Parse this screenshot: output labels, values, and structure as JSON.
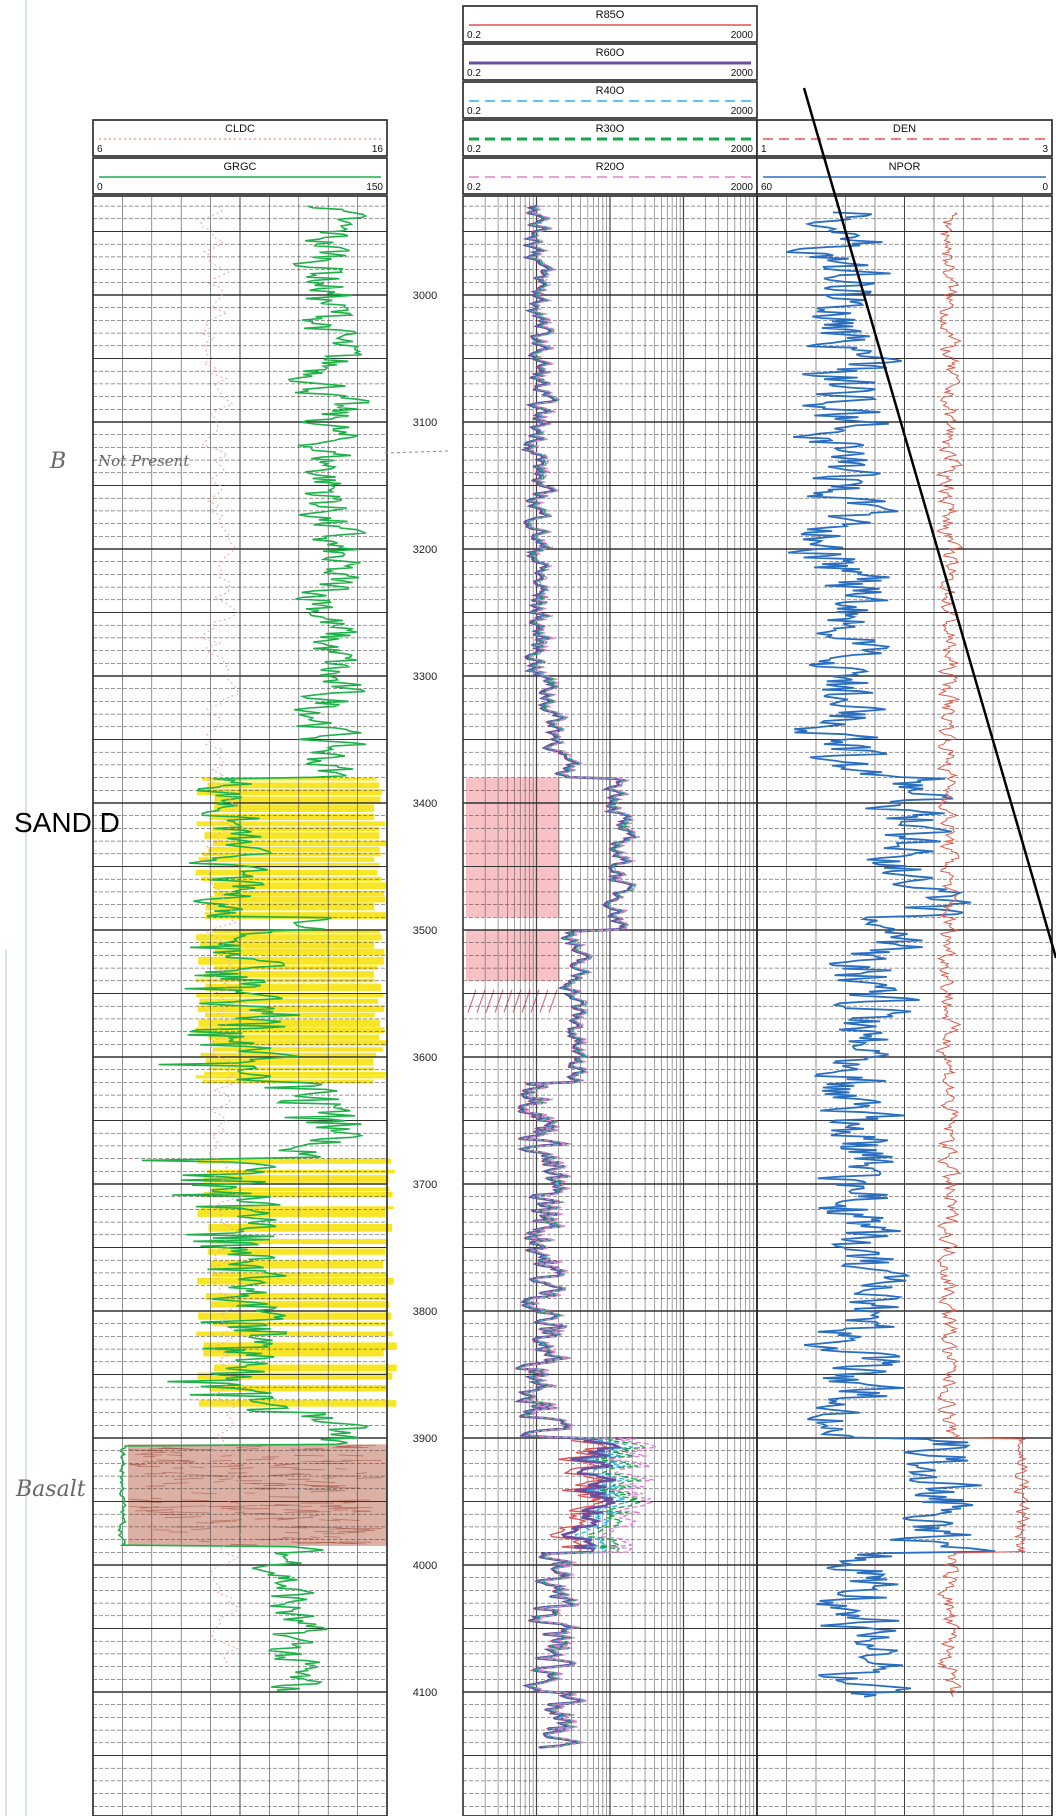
{
  "chart_data": {
    "type": "line",
    "depth_axis": {
      "ticks": [
        3000,
        3100,
        3200,
        3300,
        3400,
        3500,
        3600,
        3700,
        3800,
        3900,
        4000,
        4100
      ],
      "range": [
        2920,
        4200
      ]
    },
    "tracks": [
      {
        "name": "gamma-track",
        "curves": [
          {
            "name": "CLDC",
            "color": "#f2a0a0",
            "style": "dotted",
            "scale_min": "6",
            "scale_max": "16"
          },
          {
            "name": "GRGC",
            "color": "#1fb04a",
            "style": "solid",
            "scale_min": "0",
            "scale_max": "150"
          }
        ]
      },
      {
        "name": "resistivity-track",
        "curves": [
          {
            "name": "R85O",
            "color": "#e05050",
            "style": "solid",
            "scale_min": "0.2",
            "scale_max": "2000"
          },
          {
            "name": "R60O",
            "color": "#6a4fa0",
            "style": "solid",
            "scale_min": "0.2",
            "scale_max": "2000"
          },
          {
            "name": "R40O",
            "color": "#2ab0e0",
            "style": "dashed",
            "scale_min": "0.2",
            "scale_max": "2000"
          },
          {
            "name": "R30O",
            "color": "#16a34a",
            "style": "dashed",
            "scale_min": "0.2",
            "scale_max": "2000"
          },
          {
            "name": "R20O",
            "color": "#e080d0",
            "style": "dashed",
            "scale_min": "0.2",
            "scale_max": "2000"
          }
        ]
      },
      {
        "name": "porosity-track",
        "curves": [
          {
            "name": "DEN",
            "color": "#e05a4a",
            "style": "dashed",
            "scale_min": "1",
            "scale_max": "3"
          },
          {
            "name": "NPOR",
            "color": "#2a6ec0",
            "style": "solid",
            "scale_min": "60",
            "scale_max": "0"
          }
        ]
      }
    ],
    "zones": [
      {
        "kind": "sand",
        "top": 3380,
        "base": 3490,
        "color": "#f7e200"
      },
      {
        "kind": "sand",
        "top": 3500,
        "base": 3620,
        "color": "#f7e200"
      },
      {
        "kind": "sand",
        "top": 3680,
        "base": 3880,
        "color": "#f7e200"
      },
      {
        "kind": "basalt",
        "top": 3905,
        "base": 3985,
        "color": "#c0705a"
      },
      {
        "kind": "resistive",
        "top": 3380,
        "base": 3490,
        "color": "#f3a0a8"
      },
      {
        "kind": "resistive",
        "top": 3500,
        "base": 3540,
        "color": "#f3a0a8"
      }
    ]
  },
  "annotations": {
    "sand_label": "SAND D",
    "marker_b": "B",
    "not_present": "Not Present",
    "basalt": "Basalt"
  },
  "colors": {
    "sand": "#f7e200",
    "basalt": "#c0705a",
    "grid": "#333333"
  }
}
